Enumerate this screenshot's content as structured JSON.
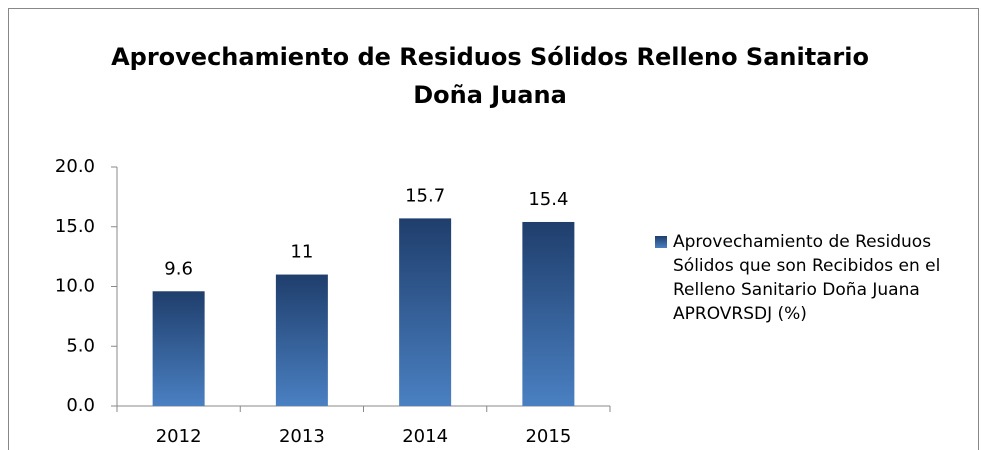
{
  "chart_data": {
    "type": "bar",
    "title": "Aprovechamiento de Residuos Sólidos Relleno Sanitario Doña Juana",
    "categories": [
      "2012",
      "2013",
      "2014",
      "2015"
    ],
    "series": [
      {
        "name": "Aprovechamiento de Residuos Sólidos que son Recibidos en el Relleno Sanitario Doña Juana APROVRSDJ (%)",
        "color": "#3a68a8",
        "values": [
          9.6,
          11,
          15.7,
          15.4
        ]
      }
    ],
    "ylim": [
      0,
      20
    ],
    "yticks": [
      {
        "value": 0,
        "label": "0.0"
      },
      {
        "value": 5,
        "label": "5.0"
      },
      {
        "value": 10,
        "label": "10.0"
      },
      {
        "value": 15,
        "label": "15.0"
      },
      {
        "value": 20,
        "label": "20.0"
      }
    ],
    "legend": "right"
  }
}
